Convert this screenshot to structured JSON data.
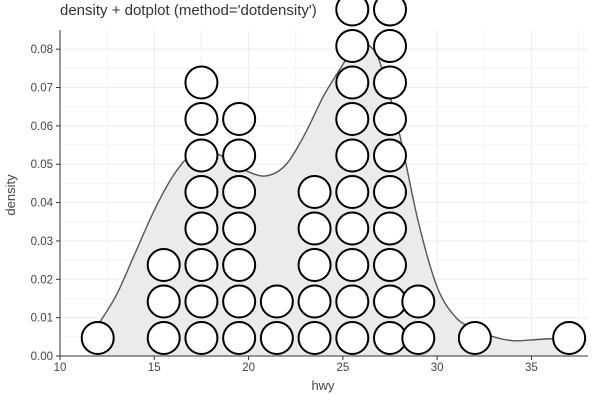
{
  "chart_data": {
    "type": "scatter",
    "title": "density + dotplot (method='dotdensity')",
    "xlabel": "hwy",
    "ylabel": "density",
    "xlim": [
      10,
      38
    ],
    "ylim": [
      0,
      0.085
    ],
    "x_ticks": [
      10,
      15,
      20,
      25,
      30,
      35
    ],
    "y_ticks": [
      0.0,
      0.01,
      0.02,
      0.03,
      0.04,
      0.05,
      0.06,
      0.07,
      0.08
    ],
    "x_tick_labels": [
      "10",
      "15",
      "20",
      "25",
      "30",
      "35"
    ],
    "y_tick_labels": [
      "0.00",
      "0.01",
      "0.02",
      "0.03",
      "0.04",
      "0.05",
      "0.06",
      "0.07",
      "0.08"
    ],
    "grid": true,
    "density_curve": {
      "x": [
        12,
        13,
        14,
        15,
        16,
        17,
        17.5,
        18,
        19,
        20,
        21,
        22,
        23,
        24,
        25,
        25.5,
        26,
        26.5,
        27,
        28,
        29,
        30,
        31,
        32,
        33,
        34,
        35,
        36,
        37
      ],
      "y": [
        0.008,
        0.016,
        0.027,
        0.038,
        0.047,
        0.053,
        0.054,
        0.0535,
        0.051,
        0.048,
        0.047,
        0.05,
        0.058,
        0.068,
        0.076,
        0.08,
        0.0815,
        0.0805,
        0.076,
        0.058,
        0.035,
        0.018,
        0.01,
        0.007,
        0.005,
        0.004,
        0.0042,
        0.0045,
        0.0045
      ]
    },
    "dot_columns": [
      {
        "x": 12,
        "count": 1
      },
      {
        "x": 15.5,
        "count": 3
      },
      {
        "x": 17.5,
        "count": 8
      },
      {
        "x": 19.5,
        "count": 7
      },
      {
        "x": 21.5,
        "count": 2
      },
      {
        "x": 23.5,
        "count": 5
      },
      {
        "x": 25.5,
        "count": 10
      },
      {
        "x": 27.5,
        "count": 10
      },
      {
        "x": 29,
        "count": 2
      },
      {
        "x": 32,
        "count": 1
      },
      {
        "x": 37,
        "count": 1
      }
    ],
    "dot_colors": {
      "fill": "#ffffff",
      "stroke": "#000000"
    },
    "density_colors": {
      "fill": "#ebebeb",
      "stroke": "#555555"
    },
    "grid_color": "#ebebeb"
  }
}
